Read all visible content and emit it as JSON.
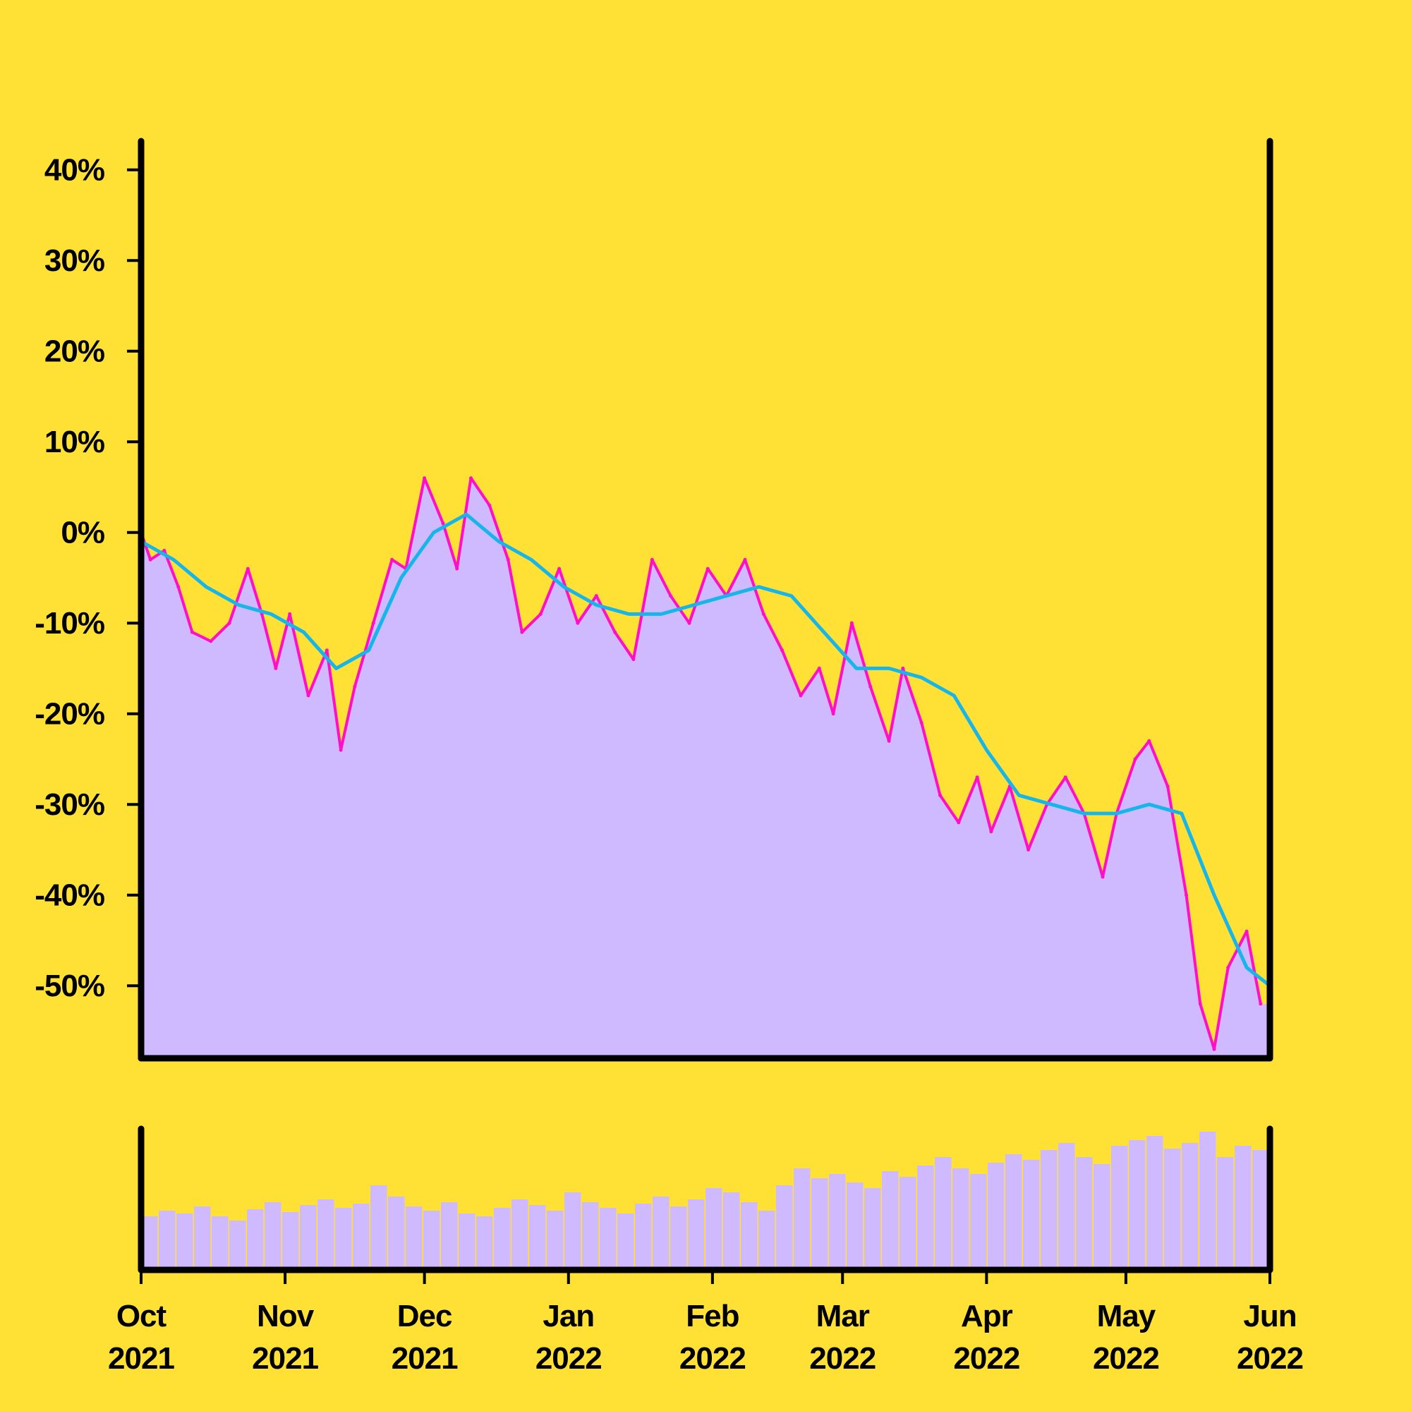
{
  "colors": {
    "background": "#FFE135",
    "area_fill": "#CFBAFF",
    "price_line": "#FF0FC8",
    "moving_average": "#17B6EA",
    "volume_fill": "#CFBAFF",
    "axis": "#000000"
  },
  "chart_data": {
    "type": "line",
    "title": "",
    "xlabel": "",
    "ylabel": "",
    "ylim": [
      -58,
      42
    ],
    "y_ticks": [
      40,
      30,
      20,
      10,
      0,
      -10,
      -20,
      -30,
      -40,
      -50
    ],
    "y_tick_labels": [
      "40%",
      "30%",
      "20%",
      "10%",
      "0%",
      "-10%",
      "-20%",
      "-30%",
      "-40%",
      "-50%"
    ],
    "x_range": [
      "2021-10-01",
      "2022-06-01"
    ],
    "x_ticks": [
      {
        "date": "2021-10-01",
        "month": "Oct",
        "year": "2021"
      },
      {
        "date": "2021-11-01",
        "month": "Nov",
        "year": "2021"
      },
      {
        "date": "2021-12-01",
        "month": "Dec",
        "year": "2021"
      },
      {
        "date": "2022-01-01",
        "month": "Jan",
        "year": "2022"
      },
      {
        "date": "2022-02-01",
        "month": "Feb",
        "year": "2022"
      },
      {
        "date": "2022-03-01",
        "month": "Mar",
        "year": "2022"
      },
      {
        "date": "2022-04-01",
        "month": "Apr",
        "year": "2022"
      },
      {
        "date": "2022-05-01",
        "month": "May",
        "year": "2022"
      },
      {
        "date": "2022-06-01",
        "month": "Jun",
        "year": "2022"
      }
    ],
    "grid": false,
    "series": [
      {
        "role": "price",
        "points": [
          [
            "2021-10-01",
            0
          ],
          [
            "2021-10-03",
            -3
          ],
          [
            "2021-10-06",
            -2
          ],
          [
            "2021-10-09",
            -6
          ],
          [
            "2021-10-12",
            -11
          ],
          [
            "2021-10-16",
            -12
          ],
          [
            "2021-10-20",
            -10
          ],
          [
            "2021-10-24",
            -4
          ],
          [
            "2021-10-27",
            -9
          ],
          [
            "2021-10-30",
            -15
          ],
          [
            "2021-11-02",
            -9
          ],
          [
            "2021-11-06",
            -18
          ],
          [
            "2021-11-10",
            -13
          ],
          [
            "2021-11-13",
            -24
          ],
          [
            "2021-11-16",
            -17
          ],
          [
            "2021-11-20",
            -10
          ],
          [
            "2021-11-24",
            -3
          ],
          [
            "2021-11-27",
            -4
          ],
          [
            "2021-12-01",
            6
          ],
          [
            "2021-12-05",
            1
          ],
          [
            "2021-12-08",
            -4
          ],
          [
            "2021-12-11",
            6
          ],
          [
            "2021-12-15",
            3
          ],
          [
            "2021-12-19",
            -3
          ],
          [
            "2021-12-22",
            -11
          ],
          [
            "2021-12-26",
            -9
          ],
          [
            "2021-12-30",
            -4
          ],
          [
            "2022-01-03",
            -10
          ],
          [
            "2022-01-07",
            -7
          ],
          [
            "2022-01-11",
            -11
          ],
          [
            "2022-01-15",
            -14
          ],
          [
            "2022-01-19",
            -3
          ],
          [
            "2022-01-23",
            -7
          ],
          [
            "2022-01-27",
            -10
          ],
          [
            "2022-01-31",
            -4
          ],
          [
            "2022-02-04",
            -7
          ],
          [
            "2022-02-08",
            -3
          ],
          [
            "2022-02-12",
            -9
          ],
          [
            "2022-02-16",
            -13
          ],
          [
            "2022-02-20",
            -18
          ],
          [
            "2022-02-24",
            -15
          ],
          [
            "2022-02-27",
            -20
          ],
          [
            "2022-03-03",
            -10
          ],
          [
            "2022-03-07",
            -17
          ],
          [
            "2022-03-11",
            -23
          ],
          [
            "2022-03-14",
            -15
          ],
          [
            "2022-03-18",
            -21
          ],
          [
            "2022-03-22",
            -29
          ],
          [
            "2022-03-26",
            -32
          ],
          [
            "2022-03-30",
            -27
          ],
          [
            "2022-04-02",
            -33
          ],
          [
            "2022-04-06",
            -28
          ],
          [
            "2022-04-10",
            -35
          ],
          [
            "2022-04-14",
            -30
          ],
          [
            "2022-04-18",
            -27
          ],
          [
            "2022-04-22",
            -31
          ],
          [
            "2022-04-26",
            -38
          ],
          [
            "2022-04-29",
            -31
          ],
          [
            "2022-05-03",
            -25
          ],
          [
            "2022-05-06",
            -23
          ],
          [
            "2022-05-10",
            -28
          ],
          [
            "2022-05-14",
            -40
          ],
          [
            "2022-05-17",
            -52
          ],
          [
            "2022-05-20",
            -57
          ],
          [
            "2022-05-23",
            -48
          ],
          [
            "2022-05-27",
            -44
          ],
          [
            "2022-05-30",
            -52
          ]
        ]
      },
      {
        "role": "moving_average",
        "points": [
          [
            "2021-10-01",
            -1
          ],
          [
            "2021-10-08",
            -3
          ],
          [
            "2021-10-15",
            -6
          ],
          [
            "2021-10-22",
            -8
          ],
          [
            "2021-10-29",
            -9
          ],
          [
            "2021-11-05",
            -11
          ],
          [
            "2021-11-12",
            -15
          ],
          [
            "2021-11-19",
            -13
          ],
          [
            "2021-11-26",
            -5
          ],
          [
            "2021-12-03",
            0
          ],
          [
            "2021-12-10",
            2
          ],
          [
            "2021-12-17",
            -1
          ],
          [
            "2021-12-24",
            -3
          ],
          [
            "2021-12-31",
            -6
          ],
          [
            "2022-01-07",
            -8
          ],
          [
            "2022-01-14",
            -9
          ],
          [
            "2022-01-21",
            -9
          ],
          [
            "2022-01-28",
            -8
          ],
          [
            "2022-02-04",
            -7
          ],
          [
            "2022-02-11",
            -6
          ],
          [
            "2022-02-18",
            -7
          ],
          [
            "2022-02-25",
            -11
          ],
          [
            "2022-03-04",
            -15
          ],
          [
            "2022-03-11",
            -15
          ],
          [
            "2022-03-18",
            -16
          ],
          [
            "2022-03-25",
            -18
          ],
          [
            "2022-04-01",
            -24
          ],
          [
            "2022-04-08",
            -29
          ],
          [
            "2022-04-15",
            -30
          ],
          [
            "2022-04-22",
            -31
          ],
          [
            "2022-04-29",
            -31
          ],
          [
            "2022-05-06",
            -30
          ],
          [
            "2022-05-13",
            -31
          ],
          [
            "2022-05-20",
            -40
          ],
          [
            "2022-05-27",
            -48
          ],
          [
            "2022-06-01",
            -50
          ]
        ]
      },
      {
        "role": "volume",
        "relative_levels": [
          0.38,
          0.42,
          0.4,
          0.45,
          0.38,
          0.35,
          0.43,
          0.48,
          0.41,
          0.46,
          0.5,
          0.44,
          0.47,
          0.6,
          0.52,
          0.45,
          0.42,
          0.48,
          0.4,
          0.38,
          0.44,
          0.5,
          0.46,
          0.42,
          0.55,
          0.48,
          0.44,
          0.4,
          0.47,
          0.52,
          0.45,
          0.5,
          0.58,
          0.55,
          0.48,
          0.42,
          0.6,
          0.72,
          0.65,
          0.68,
          0.62,
          0.58,
          0.7,
          0.66,
          0.74,
          0.8,
          0.72,
          0.68,
          0.76,
          0.82,
          0.78,
          0.85,
          0.9,
          0.8,
          0.75,
          0.88,
          0.92,
          0.95,
          0.86,
          0.9,
          0.98,
          0.8,
          0.88,
          0.85
        ]
      }
    ]
  }
}
